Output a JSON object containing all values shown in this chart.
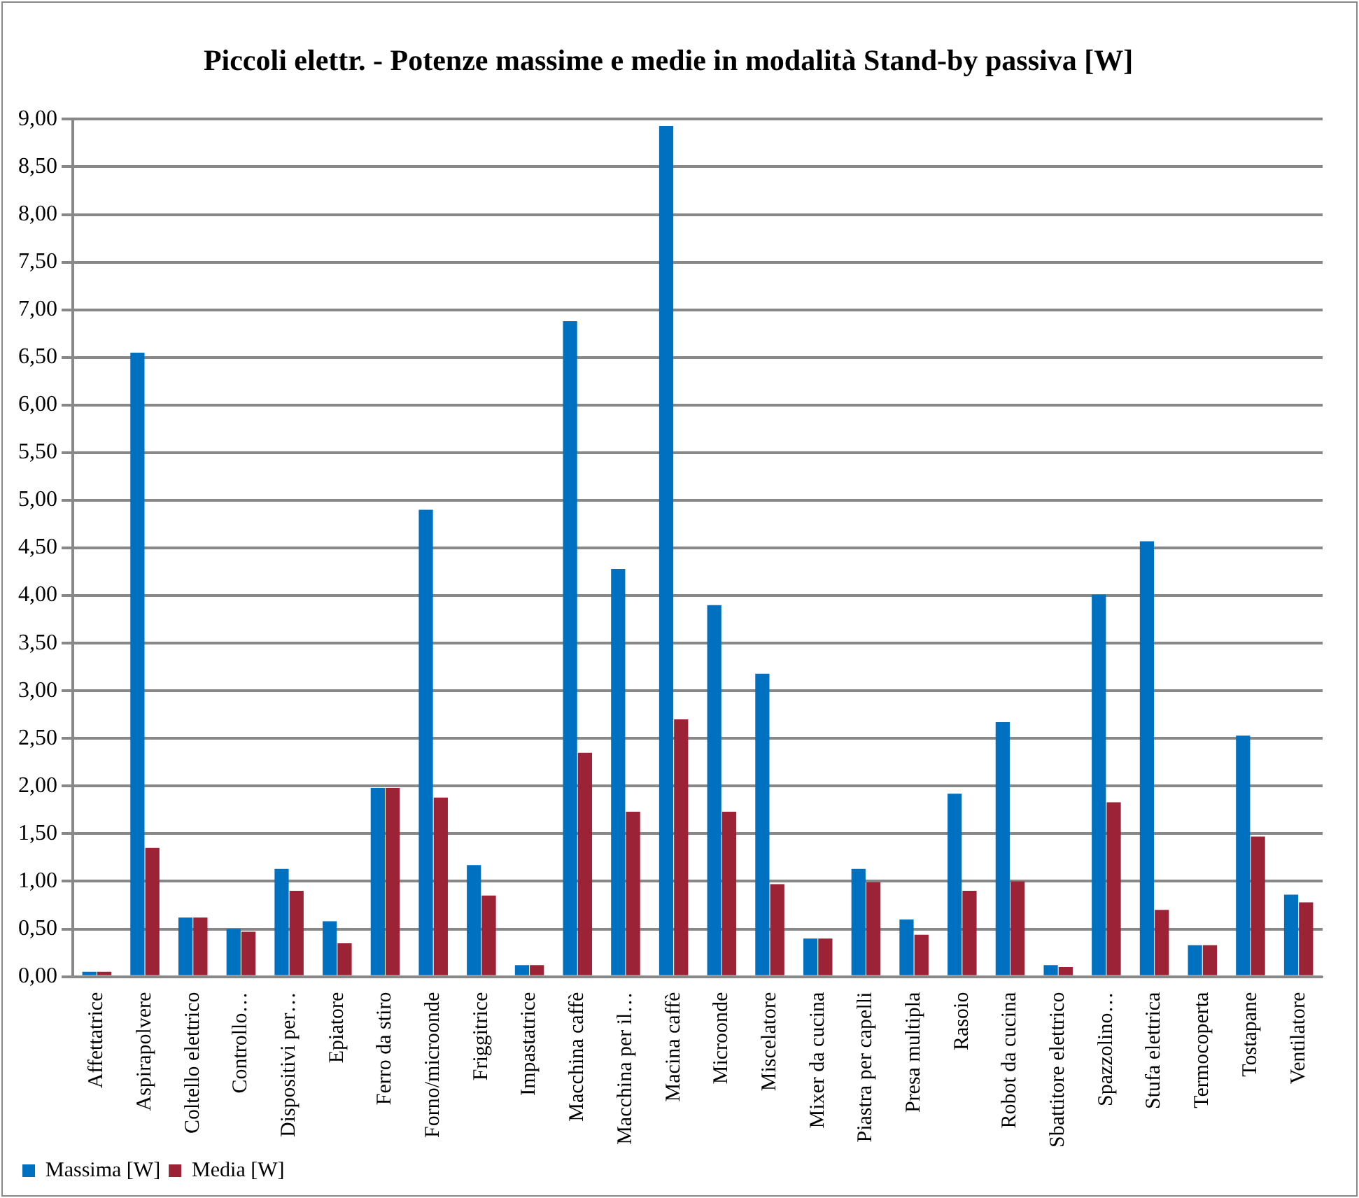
{
  "chart_data": {
    "type": "bar",
    "title": "Piccoli elettr. - Potenze massime e medie in modalità Stand-by passiva [W]",
    "categories": [
      "Affettatrice",
      "Aspirapolvere",
      "Coltello elettrico",
      "Controllo…",
      "Dispositivi per…",
      "Epiatore",
      "Ferro da stiro",
      "Forno/microonde",
      "Friggitrice",
      "Impastatrice",
      "Macchina caffè",
      "Macchina per il…",
      "Macina caffè",
      "Microonde",
      "Miscelatore",
      "Mixer da cucina",
      "Piastra per capelli",
      "Presa multipla",
      "Rasoio",
      "Robot da cucina",
      "Sbattitore elettrico",
      "Spazzolino…",
      "Stufa elettrica",
      "Termocoperta",
      "Tostapane",
      "Ventilatore"
    ],
    "series": [
      {
        "name": "Massima [W]",
        "color": "#0070c0",
        "values": [
          0.05,
          6.55,
          0.62,
          0.5,
          1.13,
          0.58,
          1.98,
          4.9,
          1.17,
          0.12,
          6.88,
          4.28,
          8.93,
          3.9,
          3.18,
          0.4,
          1.13,
          0.6,
          1.92,
          2.67,
          0.12,
          4.01,
          4.57,
          0.33,
          2.53,
          0.86
        ]
      },
      {
        "name": "Media [W]",
        "color": "#9b2335",
        "values": [
          0.05,
          1.35,
          0.62,
          0.47,
          0.9,
          0.35,
          1.98,
          1.88,
          0.85,
          0.12,
          2.35,
          1.73,
          2.7,
          1.73,
          0.97,
          0.4,
          0.99,
          0.44,
          0.9,
          1.0,
          0.1,
          1.83,
          0.7,
          0.33,
          1.47,
          0.78
        ]
      }
    ],
    "ylim": [
      0,
      9
    ],
    "yticks": [
      {
        "value": 0,
        "label": "0,00"
      },
      {
        "value": 0.5,
        "label": "0,50"
      },
      {
        "value": 1,
        "label": "1,00"
      },
      {
        "value": 1.5,
        "label": "1,50"
      },
      {
        "value": 2,
        "label": "2,00"
      },
      {
        "value": 2.5,
        "label": "2,50"
      },
      {
        "value": 3,
        "label": "3,00"
      },
      {
        "value": 3.5,
        "label": "3,50"
      },
      {
        "value": 4,
        "label": "4,00"
      },
      {
        "value": 4.5,
        "label": "4,50"
      },
      {
        "value": 5,
        "label": "5,00"
      },
      {
        "value": 5.5,
        "label": "5,50"
      },
      {
        "value": 6,
        "label": "6,00"
      },
      {
        "value": 6.5,
        "label": "6,50"
      },
      {
        "value": 7,
        "label": "7,00"
      },
      {
        "value": 7.5,
        "label": "7,50"
      },
      {
        "value": 8,
        "label": "8,00"
      },
      {
        "value": 8.5,
        "label": "8,50"
      },
      {
        "value": 9,
        "label": "9,00"
      }
    ],
    "grid": "y",
    "legend": "bottom left"
  }
}
